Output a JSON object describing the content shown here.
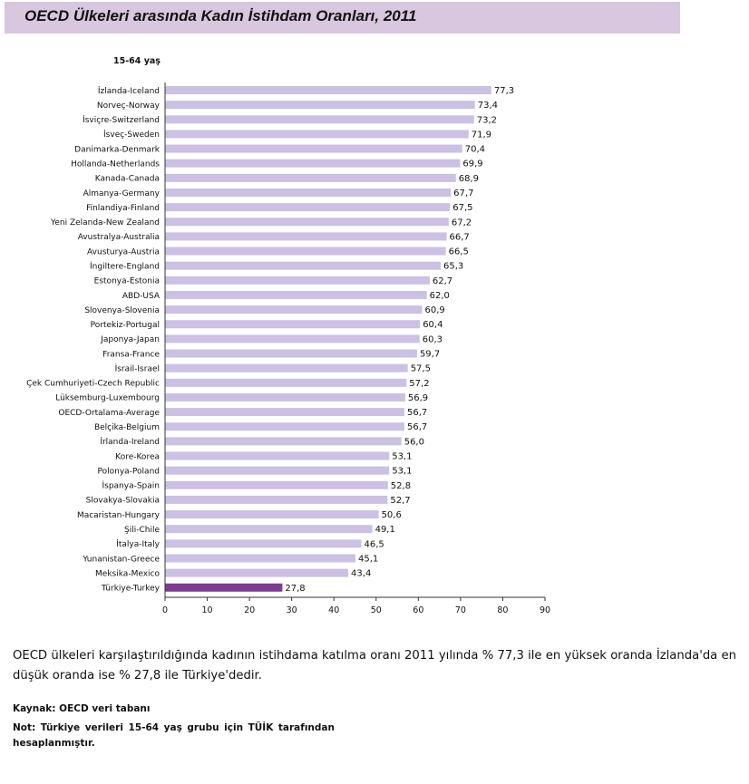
{
  "header": {
    "title": "OECD Ülkeleri arasında Kadın İstihdam Oranları, 2011"
  },
  "chart_data": {
    "type": "bar",
    "orientation": "horizontal",
    "subtitle": "15-64 yaş",
    "categories": [
      "İzlanda-Iceland",
      "Norveç-Norway",
      "İsviçre-Switzerland",
      "İsveç-Sweden",
      "Danimarka-Denmark",
      "Hollanda-Netherlands",
      "Kanada-Canada",
      "Almanya-Germany",
      "Finlandiya-Finland",
      "Yeni Zelanda-New Zealand",
      "Avustralya-Australia",
      "Avusturya-Austria",
      "İngiltere-England",
      "Estonya-Estonia",
      "ABD-USA",
      "Slovenya-Slovenia",
      "Portekiz-Portugal",
      "Japonya-Japan",
      "Fransa-France",
      "İsrail-Israel",
      "Çek Cumhuriyeti-Czech Republic",
      "Lüksemburg-Luxembourg",
      "OECD-Ortalama-Average",
      "Belçika-Belgium",
      "İrlanda-Ireland",
      "Kore-Korea",
      "Polonya-Poland",
      "İspanya-Spain",
      "Slovakya-Slovakia",
      "Macaristan-Hungary",
      "Şili-Chile",
      "İtalya-Italy",
      "Yunanistan-Greece",
      "Meksika-Mexico",
      "Türkiye-Turkey"
    ],
    "values": [
      77.3,
      73.4,
      73.2,
      71.9,
      70.4,
      69.9,
      68.9,
      67.7,
      67.5,
      67.2,
      66.7,
      66.5,
      65.3,
      62.7,
      62.0,
      60.9,
      60.4,
      60.3,
      59.7,
      57.5,
      57.2,
      56.9,
      56.7,
      56.7,
      56.0,
      53.1,
      53.1,
      52.8,
      52.7,
      50.6,
      49.1,
      46.5,
      45.1,
      43.4,
      27.8
    ],
    "value_labels": [
      "77,3",
      "73,4",
      "73,2",
      "71,9",
      "70,4",
      "69,9",
      "68,9",
      "67,7",
      "67,5",
      "67,2",
      "66,7",
      "66,5",
      "65,3",
      "62,7",
      "62,0",
      "60,9",
      "60,4",
      "60,3",
      "59,7",
      "57,5",
      "57,2",
      "56,9",
      "56,7",
      "56,7",
      "56,0",
      "53,1",
      "53,1",
      "52,8",
      "52,7",
      "50,6",
      "49,1",
      "46,5",
      "45,1",
      "43,4",
      "27,8"
    ],
    "highlight_category": "Türkiye-Turkey",
    "xlim": [
      0,
      90
    ],
    "xticks": [
      0,
      10,
      20,
      30,
      40,
      50,
      60,
      70,
      80,
      90
    ],
    "colors": {
      "bar": "#ccc0e3",
      "highlight": "#7a3e8f"
    },
    "grid": false,
    "legend": "none"
  },
  "paragraph": "OECD ülkeleri karşılaştırıldığında kadının istihdama katılma oranı 2011 yılında % 77,3 ile en yüksek oranda İzlanda'da en düşük oranda ise % 27,8 ile Türkiye'dedir.",
  "source": "Kaynak: OECD veri tabanı",
  "note": "Not: Türkiye verileri 15-64 yaş grubu için TÜİK tarafından hesaplanmıştır."
}
